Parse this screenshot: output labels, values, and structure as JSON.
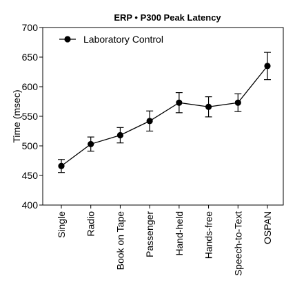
{
  "chart_data": {
    "type": "line",
    "title": "ERP • P300 Peak Latency",
    "xlabel": "",
    "ylabel": "Time (msec)",
    "ylim": [
      400,
      700
    ],
    "yticks": [
      400,
      450,
      500,
      550,
      600,
      650,
      700
    ],
    "categories": [
      "Single",
      "Radio",
      "Book on Tape",
      "Passenger",
      "Hand-held",
      "Hands-free",
      "Speech-to-Text",
      "OSPAN"
    ],
    "series": [
      {
        "name": "Laboratory Control",
        "values": [
          466,
          503,
          518,
          542,
          573,
          566,
          573,
          635
        ],
        "error": [
          11,
          12,
          13,
          17,
          17,
          17,
          15,
          23
        ],
        "color": "#000000"
      }
    ],
    "grid": false,
    "legend_position": "top-left",
    "error_bars": true
  }
}
